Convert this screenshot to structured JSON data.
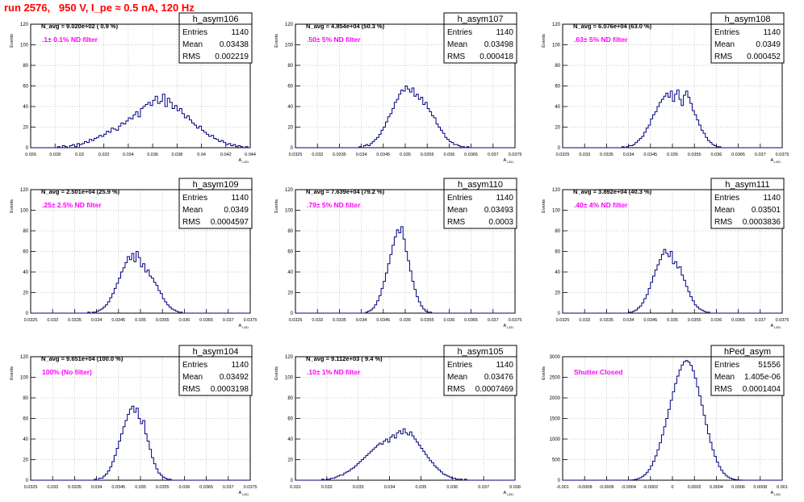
{
  "page_title": "run 2576,   950 V, I_pe ≈ 0.5 nA, 120 Hz",
  "colors": {
    "histogram": "#000080",
    "title": "#ff0000",
    "annotation": "#ff00ff",
    "grid": "#b8b8b8"
  },
  "stat_labels": {
    "entries": "Entries",
    "mean": "Mean",
    "rms": "RMS"
  },
  "chart_data": [
    {
      "type": "bar",
      "title": "h_asym106",
      "ylabel": "Events",
      "xlabel": "A_LED",
      "navg": "N_avg = 9.020e+02 ( 0.9 %)",
      "filter": ".1± 0.1% ND filter",
      "stats": {
        "entries": "1140",
        "mean": "0.03438",
        "rms": "0.002219"
      },
      "xlim": [
        0.026,
        0.044
      ],
      "ylim": [
        0,
        120
      ],
      "grid": true,
      "yticks": [
        0,
        20,
        40,
        60,
        80,
        100,
        120
      ],
      "xticks": [
        0.026,
        0.028,
        0.03,
        0.032,
        0.034,
        0.036,
        0.038,
        0.04,
        0.042,
        0.044
      ],
      "xtick_labels": [
        "0.026",
        "0.028",
        "0.03",
        "0.032",
        "0.034",
        "0.036",
        "0.038",
        "0.04",
        "0.042",
        "0.044"
      ],
      "bin_start": 0.026,
      "bin_width": 0.0002,
      "values": [
        0,
        0,
        0,
        0,
        0,
        0,
        0,
        0,
        0,
        0,
        0,
        1,
        0,
        2,
        1,
        0,
        2,
        3,
        1,
        4,
        3,
        4,
        6,
        5,
        8,
        7,
        9,
        10,
        12,
        11,
        13,
        16,
        15,
        19,
        18,
        17,
        21,
        24,
        23,
        26,
        29,
        28,
        32,
        35,
        30,
        38,
        40,
        42,
        44,
        41,
        46,
        50,
        43,
        45,
        52,
        40,
        48,
        44,
        38,
        41,
        36,
        38,
        33,
        29,
        31,
        27,
        24,
        22,
        19,
        21,
        17,
        15,
        13,
        11,
        12,
        9,
        8,
        6,
        7,
        5,
        3,
        4,
        2,
        3,
        1,
        2,
        1,
        0,
        1,
        0
      ]
    },
    {
      "type": "bar",
      "title": "h_asym107",
      "ylabel": "Events",
      "xlabel": "A_LED",
      "navg": "N_avg = 4.854e+04 (50.3 %)",
      "filter": ".50± 5% ND filter",
      "stats": {
        "entries": "1140",
        "mean": "0.03498",
        "rms": "0.000418"
      },
      "xlim": [
        0.0325,
        0.0375
      ],
      "ylim": [
        0,
        120
      ],
      "grid": true,
      "yticks": [
        0,
        20,
        40,
        60,
        80,
        100,
        120
      ],
      "xticks": [
        0.0325,
        0.033,
        0.0335,
        0.034,
        0.0345,
        0.035,
        0.0355,
        0.036,
        0.0365,
        0.037,
        0.0375
      ],
      "xtick_labels": [
        "0.0325",
        "0.033",
        "0.0335",
        "0.034",
        "0.0345",
        "0.035",
        "0.0355",
        "0.036",
        "0.0365",
        "0.037",
        "0.0375"
      ],
      "bin_start": 0.0325,
      "bin_width": 5e-05,
      "values": [
        0,
        0,
        0,
        0,
        0,
        0,
        0,
        0,
        0,
        0,
        0,
        0,
        0,
        0,
        0,
        0,
        0,
        0,
        0,
        0,
        0,
        0,
        0,
        0,
        0,
        0,
        0,
        0,
        0,
        1,
        0,
        2,
        3,
        2,
        4,
        6,
        8,
        10,
        13,
        17,
        20,
        25,
        30,
        33,
        38,
        44,
        47,
        52,
        56,
        55,
        60,
        57,
        54,
        58,
        50,
        52,
        47,
        49,
        42,
        44,
        38,
        35,
        31,
        29,
        23,
        20,
        17,
        14,
        10,
        8,
        6,
        5,
        3,
        3,
        2,
        1,
        1,
        0,
        1,
        0,
        0,
        0,
        0,
        0,
        0,
        0,
        0,
        0,
        0,
        0,
        0,
        0,
        0,
        0,
        0,
        0,
        0,
        0,
        0,
        0
      ]
    },
    {
      "type": "bar",
      "title": "h_asym108",
      "ylabel": "Events",
      "xlabel": "A_LED",
      "navg": "N_avg = 6.076e+04 (63.0 %)",
      "filter": ".63± 5% ND filter",
      "stats": {
        "entries": "1140",
        "mean": "0.0349",
        "rms": "0.000452"
      },
      "xlim": [
        0.0325,
        0.0375
      ],
      "ylim": [
        0,
        120
      ],
      "grid": true,
      "yticks": [
        0,
        20,
        40,
        60,
        80,
        100,
        120
      ],
      "xticks": [
        0.0325,
        0.033,
        0.0335,
        0.034,
        0.0345,
        0.035,
        0.0355,
        0.036,
        0.0365,
        0.037,
        0.0375
      ],
      "xtick_labels": [
        "0.0325",
        "0.033",
        "0.0335",
        "0.034",
        "0.0345",
        "0.035",
        "0.0355",
        "0.036",
        "0.0365",
        "0.037",
        "0.0375"
      ],
      "bin_start": 0.0325,
      "bin_width": 5e-05,
      "values": [
        0,
        0,
        0,
        0,
        0,
        0,
        0,
        0,
        0,
        0,
        0,
        0,
        0,
        0,
        0,
        0,
        0,
        0,
        0,
        0,
        0,
        0,
        0,
        0,
        0,
        0,
        0,
        1,
        0,
        1,
        2,
        2,
        3,
        5,
        7,
        9,
        11,
        15,
        19,
        22,
        28,
        32,
        35,
        40,
        44,
        47,
        50,
        53,
        49,
        55,
        45,
        52,
        56,
        47,
        41,
        51,
        55,
        49,
        43,
        36,
        32,
        27,
        22,
        17,
        14,
        10,
        7,
        5,
        3,
        2,
        1,
        1,
        0,
        0,
        0,
        0,
        0,
        0,
        0,
        0,
        0,
        0,
        0,
        0,
        0,
        0,
        0,
        0,
        0,
        0,
        0,
        0,
        0,
        0,
        0,
        0,
        0,
        0,
        0,
        0
      ]
    },
    {
      "type": "bar",
      "title": "h_asym109",
      "ylabel": "Events",
      "xlabel": "A_LED",
      "navg": "N_avg = 2.501e+04 (25.9 %)",
      "filter": ".25± 2.5% ND filter",
      "stats": {
        "entries": "1140",
        "mean": "0.0349",
        "rms": "0.0004597"
      },
      "xlim": [
        0.0325,
        0.0375
      ],
      "ylim": [
        0,
        120
      ],
      "grid": true,
      "yticks": [
        0,
        20,
        40,
        60,
        80,
        100,
        120
      ],
      "xticks": [
        0.0325,
        0.033,
        0.0335,
        0.034,
        0.0345,
        0.035,
        0.0355,
        0.036,
        0.0365,
        0.037,
        0.0375
      ],
      "xtick_labels": [
        "0.0325",
        "0.033",
        "0.0335",
        "0.034",
        "0.0345",
        "0.035",
        "0.0355",
        "0.036",
        "0.0365",
        "0.037",
        "0.0375"
      ],
      "bin_start": 0.0325,
      "bin_width": 5e-05,
      "values": [
        0,
        0,
        0,
        0,
        0,
        0,
        0,
        0,
        0,
        0,
        0,
        0,
        0,
        0,
        0,
        0,
        0,
        0,
        0,
        0,
        0,
        0,
        0,
        0,
        0,
        0,
        1,
        0,
        1,
        1,
        2,
        3,
        4,
        6,
        8,
        11,
        15,
        19,
        24,
        29,
        34,
        40,
        44,
        49,
        55,
        52,
        58,
        50,
        60,
        54,
        45,
        48,
        40,
        42,
        36,
        34,
        30,
        27,
        22,
        19,
        14,
        11,
        8,
        6,
        4,
        3,
        2,
        1,
        1,
        0,
        0,
        0,
        0,
        0,
        0,
        0,
        0,
        0,
        0,
        0,
        0,
        0,
        0,
        0,
        0,
        0,
        0,
        0,
        0,
        0,
        0,
        0,
        0,
        0,
        0,
        0,
        0,
        0,
        0,
        0
      ]
    },
    {
      "type": "bar",
      "title": "h_asym110",
      "ylabel": "Events",
      "xlabel": "A_LED",
      "navg": "N_avg = 7.639e+04 (79.2 %)",
      "filter": ".79± 5% ND filter",
      "stats": {
        "entries": "1140",
        "mean": "0.03493",
        "rms": "0.0003"
      },
      "xlim": [
        0.0325,
        0.0375
      ],
      "ylim": [
        0,
        120
      ],
      "grid": true,
      "yticks": [
        0,
        20,
        40,
        60,
        80,
        100,
        120
      ],
      "xticks": [
        0.0325,
        0.033,
        0.0335,
        0.034,
        0.0345,
        0.035,
        0.0355,
        0.036,
        0.0365,
        0.037,
        0.0375
      ],
      "xtick_labels": [
        "0.0325",
        "0.033",
        "0.0335",
        "0.034",
        "0.0345",
        "0.035",
        "0.0355",
        "0.036",
        "0.0365",
        "0.037",
        "0.0375"
      ],
      "bin_start": 0.0325,
      "bin_width": 5e-05,
      "values": [
        0,
        0,
        0,
        0,
        0,
        0,
        0,
        0,
        0,
        0,
        0,
        0,
        0,
        0,
        0,
        0,
        0,
        0,
        0,
        0,
        0,
        0,
        0,
        0,
        0,
        0,
        0,
        0,
        0,
        0,
        0,
        0,
        1,
        2,
        3,
        5,
        8,
        12,
        17,
        24,
        31,
        39,
        48,
        57,
        66,
        74,
        81,
        78,
        84,
        72,
        60,
        51,
        41,
        31,
        23,
        16,
        11,
        7,
        4,
        2,
        1,
        1,
        0,
        0,
        0,
        0,
        0,
        0,
        0,
        0,
        0,
        0,
        0,
        0,
        0,
        0,
        0,
        0,
        0,
        0,
        0,
        0,
        0,
        0,
        0,
        0,
        0,
        0,
        0,
        0,
        0,
        0,
        0,
        0,
        0,
        0,
        0,
        0,
        0,
        0
      ]
    },
    {
      "type": "bar",
      "title": "h_asym111",
      "ylabel": "Events",
      "xlabel": "A_LED",
      "navg": "N_avg = 3.892e+04 (40.3 %)",
      "filter": ".40± 4% ND filter",
      "stats": {
        "entries": "1140",
        "mean": "0.03501",
        "rms": "0.0003836"
      },
      "xlim": [
        0.0325,
        0.0375
      ],
      "ylim": [
        0,
        120
      ],
      "grid": true,
      "yticks": [
        0,
        20,
        40,
        60,
        80,
        100,
        120
      ],
      "xticks": [
        0.0325,
        0.033,
        0.0335,
        0.034,
        0.0345,
        0.035,
        0.0355,
        0.036,
        0.0365,
        0.037,
        0.0375
      ],
      "xtick_labels": [
        "0.0325",
        "0.033",
        "0.0335",
        "0.034",
        "0.0345",
        "0.035",
        "0.0355",
        "0.036",
        "0.0365",
        "0.037",
        "0.0375"
      ],
      "bin_start": 0.0325,
      "bin_width": 5e-05,
      "values": [
        0,
        0,
        0,
        0,
        0,
        0,
        0,
        0,
        0,
        0,
        0,
        0,
        0,
        0,
        0,
        0,
        0,
        0,
        0,
        0,
        0,
        0,
        0,
        0,
        0,
        0,
        0,
        0,
        0,
        0,
        1,
        1,
        2,
        3,
        5,
        7,
        10,
        14,
        18,
        24,
        30,
        36,
        42,
        47,
        52,
        57,
        62,
        58,
        55,
        60,
        48,
        50,
        44,
        45,
        37,
        32,
        26,
        21,
        16,
        12,
        8,
        6,
        4,
        3,
        2,
        1,
        1,
        0,
        0,
        0,
        0,
        0,
        0,
        0,
        0,
        0,
        0,
        0,
        0,
        0,
        0,
        0,
        0,
        0,
        0,
        0,
        0,
        0,
        0,
        0,
        0,
        0,
        0,
        0,
        0,
        0,
        0,
        0,
        0,
        0
      ]
    },
    {
      "type": "bar",
      "title": "h_asym104",
      "ylabel": "Events",
      "xlabel": "A_LED",
      "navg": "N_avg = 9.651e+04 (100.0 %)",
      "filter": "100% (No filter)",
      "stats": {
        "entries": "1140",
        "mean": "0.03492",
        "rms": "0.0003198"
      },
      "xlim": [
        0.0325,
        0.0375
      ],
      "ylim": [
        0,
        120
      ],
      "grid": true,
      "yticks": [
        0,
        20,
        40,
        60,
        80,
        100,
        120
      ],
      "xticks": [
        0.0325,
        0.033,
        0.0335,
        0.034,
        0.0345,
        0.035,
        0.0355,
        0.036,
        0.0365,
        0.037,
        0.0375
      ],
      "xtick_labels": [
        "0.0325",
        "0.033",
        "0.0335",
        "0.034",
        "0.0345",
        "0.035",
        "0.0355",
        "0.036",
        "0.0365",
        "0.037",
        "0.0375"
      ],
      "bin_start": 0.0325,
      "bin_width": 5e-05,
      "values": [
        0,
        0,
        0,
        0,
        0,
        0,
        0,
        0,
        0,
        0,
        0,
        0,
        0,
        0,
        0,
        0,
        0,
        0,
        0,
        0,
        0,
        0,
        0,
        0,
        0,
        0,
        0,
        0,
        0,
        1,
        0,
        2,
        2,
        4,
        6,
        9,
        13,
        18,
        24,
        31,
        38,
        45,
        52,
        58,
        64,
        69,
        72,
        66,
        70,
        60,
        55,
        58,
        45,
        38,
        30,
        22,
        16,
        11,
        7,
        5,
        3,
        2,
        1,
        1,
        0,
        0,
        0,
        0,
        0,
        0,
        0,
        0,
        0,
        0,
        0,
        0,
        0,
        0,
        0,
        0,
        0,
        0,
        0,
        0,
        0,
        0,
        0,
        0,
        0,
        0,
        0,
        0,
        0,
        0,
        0,
        0,
        0,
        0,
        0,
        0
      ]
    },
    {
      "type": "bar",
      "title": "h_asym105",
      "ylabel": "Events",
      "xlabel": "A_LED",
      "navg": "N_avg = 9.112e+03 ( 9.4 %)",
      "filter": ".10± 1% ND filter",
      "stats": {
        "entries": "1140",
        "mean": "0.03476",
        "rms": "0.0007469"
      },
      "xlim": [
        0.031,
        0.038
      ],
      "ylim": [
        0,
        120
      ],
      "grid": true,
      "yticks": [
        0,
        20,
        40,
        60,
        80,
        100,
        120
      ],
      "xticks": [
        0.031,
        0.032,
        0.033,
        0.034,
        0.035,
        0.036,
        0.037,
        0.038
      ],
      "xtick_labels": [
        "0.031",
        "0.032",
        "0.033",
        "0.034",
        "0.035",
        "0.036",
        "0.037",
        "0.038"
      ],
      "bin_start": 0.031,
      "bin_width": 7e-05,
      "values": [
        0,
        0,
        0,
        0,
        0,
        0,
        0,
        0,
        0,
        0,
        0,
        0,
        1,
        0,
        1,
        1,
        2,
        2,
        3,
        4,
        5,
        5,
        7,
        8,
        9,
        11,
        12,
        14,
        16,
        18,
        20,
        22,
        24,
        26,
        28,
        30,
        32,
        34,
        36,
        35,
        38,
        40,
        37,
        42,
        44,
        41,
        46,
        48,
        45,
        50,
        46,
        44,
        47,
        43,
        40,
        37,
        34,
        31,
        28,
        25,
        22,
        19,
        17,
        14,
        12,
        10,
        8,
        6,
        5,
        4,
        3,
        2,
        2,
        1,
        1,
        1,
        0,
        1,
        0,
        0,
        0,
        0,
        0,
        0,
        0,
        0,
        0,
        0,
        0,
        0,
        0,
        0,
        0,
        0,
        0,
        0,
        0,
        0,
        0,
        0
      ]
    },
    {
      "type": "bar",
      "title": "hPed_asym",
      "ylabel": "Events",
      "xlabel": "A_LED",
      "navg": "",
      "filter": "Shutter Closed",
      "stats": {
        "entries": "51556",
        "mean": "1.405e-06",
        "rms": "0.0001404"
      },
      "xlim": [
        -0.001,
        0.001
      ],
      "ylim": [
        0,
        3000
      ],
      "grid": true,
      "yticks": [
        0,
        500,
        1000,
        1500,
        2000,
        2500,
        3000
      ],
      "xticks": [
        -0.001,
        -0.0008,
        -0.0006,
        -0.0004,
        -0.0002,
        0,
        0.0002,
        0.0004,
        0.0006,
        0.0008,
        0.001
      ],
      "xtick_labels": [
        "-0.001",
        "-0.0008",
        "-0.0006",
        "-0.0004",
        "-0.0002",
        "0",
        "0.0002",
        "0.0004",
        "0.0006",
        "0.0008",
        "0.001"
      ],
      "bin_start": -0.001,
      "bin_width": 2e-05,
      "values": [
        0,
        0,
        0,
        0,
        0,
        0,
        0,
        0,
        0,
        0,
        0,
        0,
        0,
        0,
        0,
        0,
        0,
        0,
        0,
        0,
        0,
        0,
        0,
        0,
        0,
        0,
        0,
        0,
        0,
        0,
        3,
        6,
        12,
        22,
        38,
        60,
        92,
        135,
        190,
        260,
        350,
        460,
        590,
        740,
        910,
        1100,
        1300,
        1500,
        1720,
        1940,
        2150,
        2350,
        2530,
        2680,
        2800,
        2880,
        2910,
        2870,
        2790,
        2660,
        2480,
        2270,
        2050,
        1820,
        1580,
        1350,
        1130,
        920,
        740,
        580,
        440,
        330,
        240,
        170,
        115,
        75,
        48,
        30,
        18,
        10,
        6,
        3,
        1,
        0,
        0,
        0,
        0,
        0,
        0,
        0,
        0,
        0,
        0,
        0,
        0,
        0,
        0,
        0,
        0,
        0
      ]
    }
  ]
}
